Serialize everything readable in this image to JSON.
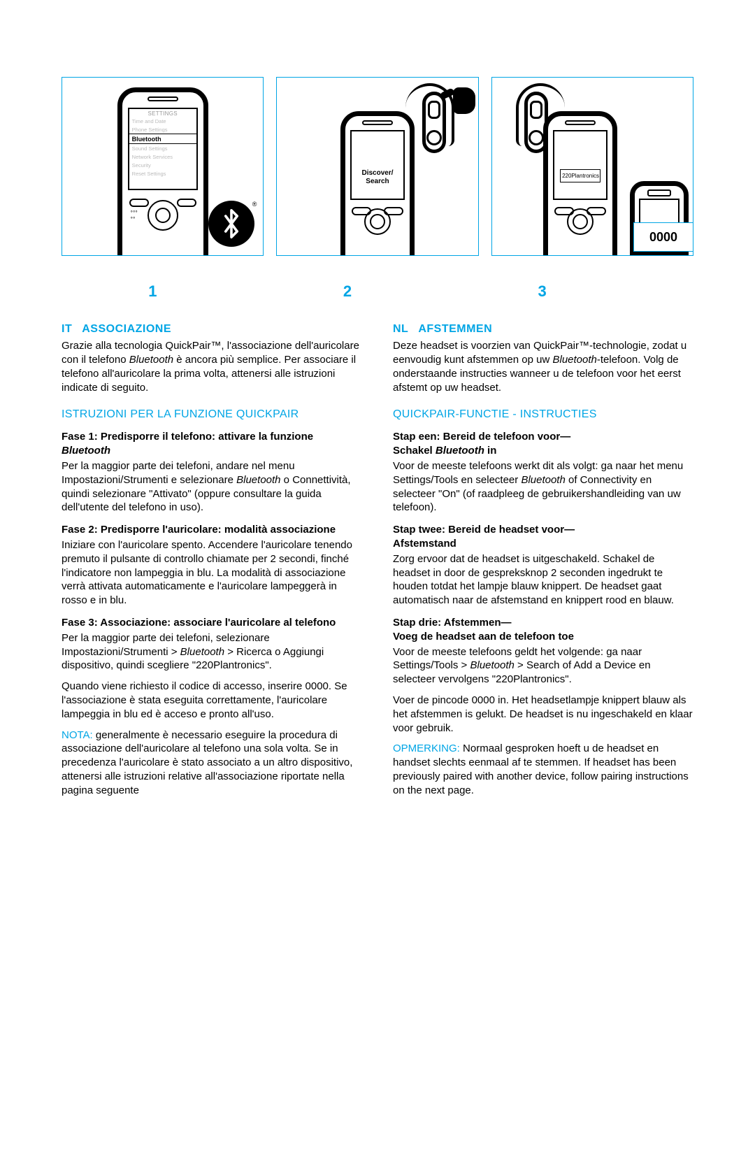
{
  "colors": {
    "accent": "#00a5e5",
    "text": "#000000",
    "bg": "#ffffff"
  },
  "diagram": {
    "step_numbers": [
      "1",
      "2",
      "3"
    ],
    "pin": "0000",
    "panel1": {
      "screen_title": "SETTINGS",
      "menu": [
        "Time and Date",
        "Phone Settings",
        "Bluetooth",
        "Sound Settings",
        "Network Services",
        "Security",
        "Reset Settings"
      ],
      "active_index": 2
    },
    "panel2": {
      "screen_text": "Discover/\nSearch"
    },
    "panel3": {
      "screen_text": "220Plantronics"
    }
  },
  "left": {
    "code": "IT",
    "title": "ASSOCIAZIONE",
    "intro": "Grazie alla tecnologia QuickPair™, l'associazione dell'auricolare con il telefono Bluetooth è ancora più semplice. Per associare il telefono all'auricolare la prima volta, attenersi alle istruzioni indicate di seguito.",
    "subhead": "ISTRUZIONI PER LA FUNZIONE QUICKPAIR",
    "s1_title": "Fase 1: Predisporre il telefono: attivare la funzione Bluetooth",
    "s1_body": "Per la maggior parte dei telefoni, andare nel menu Impostazioni/Strumenti e selezionare Bluetooth o Connettività, quindi selezionare \"Attivato\" (oppure consultare la guida dell'utente del telefono in uso).",
    "s2_title": "Fase 2: Predisporre l'auricolare: modalità associazione",
    "s2_body": "Iniziare con l'auricolare spento. Accendere l'auricolare tenendo premuto il pulsante di controllo chiamate per 2 secondi, finché l'indicatore non lampeggia in blu. La modalità di associazione verrà attivata automaticamente e l'auricolare lampeggerà in rosso e in blu.",
    "s3_title": "Fase 3: Associazione: associare l'auricolare al telefono",
    "s3_body1": "Per la maggior parte dei telefoni, selezionare Impostazioni/Strumenti > Bluetooth > Ricerca o Aggiungi dispositivo, quindi scegliere \"220Plantronics\".",
    "s3_body2": "Quando viene richiesto il codice di accesso, inserire 0000. Se l'associazione è stata eseguita correttamente, l'auricolare lampeggia in blu ed è acceso e pronto all'uso.",
    "note_label": "NOTA:",
    "note_body": " generalmente è necessario eseguire la procedura di associazione dell'auricolare al telefono una sola volta. Se in precedenza l'auricolare è stato associato a un altro dispositivo, attenersi alle istruzioni relative all'associazione riportate nella pagina seguente"
  },
  "right": {
    "code": "NL",
    "title": "AFSTEMMEN",
    "intro": "Deze headset is voorzien van QuickPair™-technologie, zodat u eenvoudig kunt afstemmen op uw Bluetooth-telefoon. Volg de onderstaande instructies wanneer u de telefoon voor het eerst afstemt op uw headset.",
    "subhead": "QUICKPAIR-FUNCTIE - INSTRUCTIES",
    "s1_title": "Stap een: Bereid de telefoon voor—\nSchakel Bluetooth in",
    "s1_body": "Voor de meeste telefoons werkt dit als volgt: ga naar het menu Settings/Tools en selecteer Bluetooth of Connectivity en selecteer \"On\" (of raadpleeg de gebruikershandleiding van uw telefoon).",
    "s2_title": "Stap twee: Bereid de headset voor—\nAfstemstand",
    "s2_body": "Zorg ervoor dat de headset is uitgeschakeld. Schakel de headset in door de gespreksknop 2 seconden ingedrukt te houden totdat het lampje blauw knippert. De headset gaat automatisch naar de afstemstand en knippert rood en blauw.",
    "s3_title": "Stap drie: Afstemmen—\nVoeg de headset aan de telefoon toe",
    "s3_body1": "Voor de meeste telefoons geldt het volgende: ga naar Settings/Tools > Bluetooth > Search of Add a Device en selecteer vervolgens \"220Plantronics\".",
    "s3_body2": "Voer de pincode 0000 in. Het headsetlampje knippert blauw als het afstemmen is gelukt. De headset is nu ingeschakeld en klaar voor gebruik.",
    "note_label": "OPMERKING:",
    "note_body": " Normaal gesproken hoeft u de headset en handset slechts eenmaal af te stemmen. If headset has been previously paired with another device, follow pairing instructions on the next page."
  }
}
